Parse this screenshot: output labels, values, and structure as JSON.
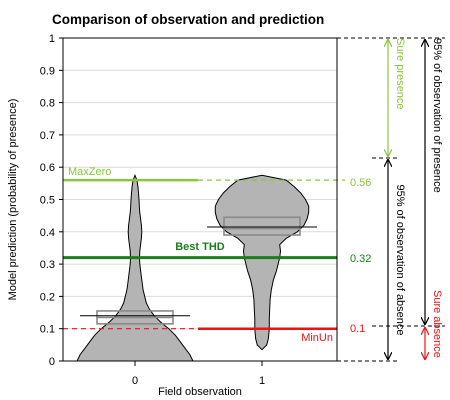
{
  "chart_data": {
    "type": "violin",
    "title": "Comparison of observation and prediction",
    "xlabel": "Field observation",
    "ylabel": "Model prediction (probability of presence)",
    "categories": [
      "0",
      "1"
    ],
    "ylim": [
      0,
      1
    ],
    "yticks": [
      "0",
      "0.1",
      "0.2",
      "0.3",
      "0.4",
      "0.5",
      "0.6",
      "0.7",
      "0.8",
      "0.9",
      "1"
    ],
    "grid": true,
    "groups": [
      {
        "name": "0",
        "box": {
          "q1": 0.115,
          "median": 0.135,
          "q3": 0.155
        },
        "mean": 0.14,
        "violin": [
          [
            0.0,
            0.36
          ],
          [
            0.02,
            0.34
          ],
          [
            0.04,
            0.31
          ],
          [
            0.06,
            0.28
          ],
          [
            0.08,
            0.25
          ],
          [
            0.1,
            0.21
          ],
          [
            0.12,
            0.16
          ],
          [
            0.14,
            0.12
          ],
          [
            0.16,
            0.09
          ],
          [
            0.18,
            0.07
          ],
          [
            0.2,
            0.06
          ],
          [
            0.22,
            0.05
          ],
          [
            0.24,
            0.045
          ],
          [
            0.26,
            0.04
          ],
          [
            0.28,
            0.035
          ],
          [
            0.3,
            0.03
          ],
          [
            0.32,
            0.028
          ],
          [
            0.34,
            0.03
          ],
          [
            0.36,
            0.035
          ],
          [
            0.38,
            0.04
          ],
          [
            0.4,
            0.042
          ],
          [
            0.42,
            0.04
          ],
          [
            0.44,
            0.035
          ],
          [
            0.46,
            0.03
          ],
          [
            0.48,
            0.027
          ],
          [
            0.5,
            0.025
          ],
          [
            0.52,
            0.022
          ],
          [
            0.54,
            0.018
          ],
          [
            0.56,
            0.012
          ],
          [
            0.575,
            0.0
          ]
        ]
      },
      {
        "name": "1",
        "box": {
          "q1": 0.39,
          "median": 0.41,
          "q3": 0.445
        },
        "mean": 0.415,
        "violin": [
          [
            0.035,
            0.0
          ],
          [
            0.05,
            0.03
          ],
          [
            0.07,
            0.04
          ],
          [
            0.1,
            0.045
          ],
          [
            0.13,
            0.045
          ],
          [
            0.16,
            0.048
          ],
          [
            0.19,
            0.05
          ],
          [
            0.22,
            0.058
          ],
          [
            0.25,
            0.07
          ],
          [
            0.28,
            0.09
          ],
          [
            0.3,
            0.1
          ],
          [
            0.32,
            0.11
          ],
          [
            0.34,
            0.115
          ],
          [
            0.36,
            0.11
          ],
          [
            0.38,
            0.15
          ],
          [
            0.4,
            0.22
          ],
          [
            0.42,
            0.26
          ],
          [
            0.44,
            0.28
          ],
          [
            0.46,
            0.29
          ],
          [
            0.48,
            0.29
          ],
          [
            0.5,
            0.27
          ],
          [
            0.52,
            0.24
          ],
          [
            0.54,
            0.2
          ],
          [
            0.56,
            0.15
          ],
          [
            0.575,
            0.0
          ]
        ]
      }
    ],
    "thresholds": [
      {
        "name": "MaxZero",
        "value": 0.56,
        "label": "0.56",
        "color": "#8ac53e"
      },
      {
        "name": "Best THD",
        "value": 0.32,
        "label": "0.32",
        "color": "#1a7f1a"
      },
      {
        "name": "MinUn",
        "value": 0.1,
        "label": "0.1",
        "color": "#ee1111"
      }
    ],
    "annotations": {
      "sure_presence": "Sure presence",
      "sure_absence": "Sure absence",
      "obs_presence": "95% of observation of presence",
      "obs_absence": "95% of observation of absence"
    },
    "colors": {
      "violin_fill": "#b4b4b4",
      "presence": "#8ac53e",
      "absence": "#ee1111",
      "best": "#1a7f1a"
    }
  }
}
